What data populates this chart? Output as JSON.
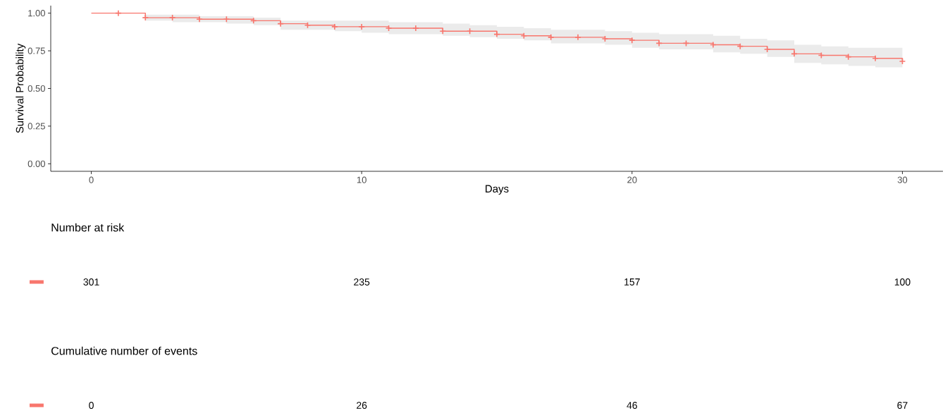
{
  "chart_data": [
    {
      "type": "step",
      "xlabel": "Days",
      "ylabel": "Survival Probability",
      "x": [
        0,
        1,
        2,
        3,
        4,
        5,
        6,
        7,
        8,
        9,
        10,
        11,
        12,
        13,
        14,
        15,
        16,
        17,
        18,
        19,
        20,
        21,
        22,
        23,
        24,
        25,
        26,
        27,
        28,
        29,
        30
      ],
      "series": [
        {
          "color": "#f8766d",
          "values": [
            1,
            1,
            0.97,
            0.97,
            0.96,
            0.96,
            0.95,
            0.93,
            0.92,
            0.91,
            0.91,
            0.9,
            0.9,
            0.88,
            0.88,
            0.86,
            0.85,
            0.84,
            0.84,
            0.83,
            0.82,
            0.8,
            0.8,
            0.79,
            0.78,
            0.76,
            0.73,
            0.72,
            0.71,
            0.7,
            0.68
          ],
          "upper": [
            1,
            1,
            0.99,
            0.99,
            0.98,
            0.98,
            0.97,
            0.95,
            0.95,
            0.95,
            0.95,
            0.94,
            0.94,
            0.93,
            0.92,
            0.91,
            0.9,
            0.89,
            0.89,
            0.88,
            0.87,
            0.86,
            0.86,
            0.85,
            0.83,
            0.82,
            0.79,
            0.78,
            0.77,
            0.77,
            0.77
          ],
          "lower": [
            1,
            1,
            0.95,
            0.94,
            0.94,
            0.93,
            0.92,
            0.89,
            0.89,
            0.88,
            0.87,
            0.86,
            0.86,
            0.85,
            0.84,
            0.83,
            0.82,
            0.8,
            0.8,
            0.79,
            0.77,
            0.76,
            0.76,
            0.74,
            0.73,
            0.71,
            0.67,
            0.66,
            0.65,
            0.64,
            0.64
          ]
        }
      ],
      "marker": "cross",
      "grid": false,
      "xlim": [
        -1.5,
        31.5
      ],
      "xticks": [
        0,
        10,
        20,
        30
      ],
      "ylim": [
        -0.05,
        1.05
      ],
      "yticks": [
        {
          "value": 0,
          "label": "0.00"
        },
        {
          "value": 0.25,
          "label": "0.25"
        },
        {
          "value": 0.5,
          "label": "0.50"
        },
        {
          "value": 0.75,
          "label": "0.75"
        },
        {
          "value": 1,
          "label": "1.00"
        }
      ]
    },
    {
      "type": "other",
      "title": "Number at risk",
      "categories": [
        null,
        null,
        null,
        null
      ],
      "color": "#f8766d",
      "values": [
        301,
        235,
        157,
        100
      ],
      "data_labels": true
    },
    {
      "type": "other",
      "title": "Cumulative number of events",
      "categories": [
        null,
        null,
        null,
        null
      ],
      "color": "#f8766d",
      "values": [
        0,
        26,
        46,
        67
      ],
      "data_labels": true
    }
  ]
}
